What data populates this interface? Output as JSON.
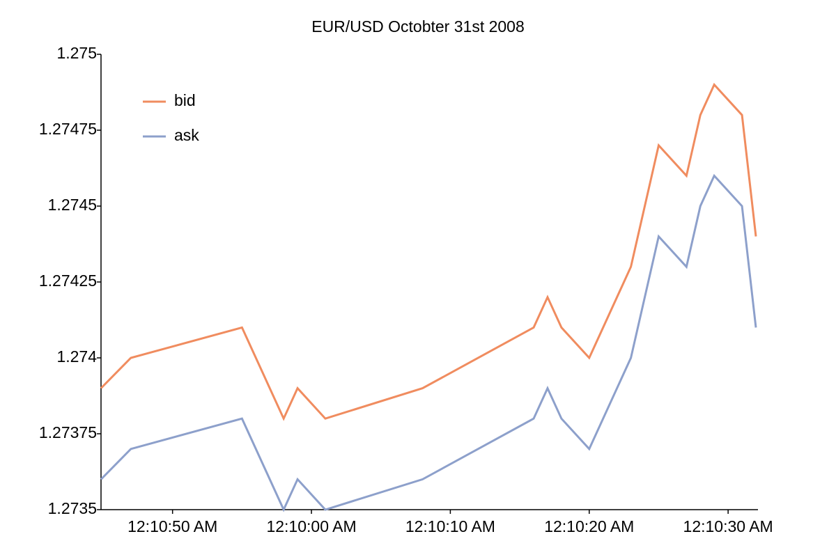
{
  "chart_data": {
    "type": "line",
    "title": "EUR/USD Octobter 31st 2008",
    "x": [
      44.85,
      47,
      55,
      58,
      59,
      61,
      68,
      76,
      77,
      78,
      80,
      83,
      85,
      87,
      88,
      89,
      91,
      92
    ],
    "series": [
      {
        "name": "bid",
        "color": "#f08c5f",
        "values": [
          1.2739,
          1.274,
          1.2741,
          1.2738,
          1.2739,
          1.2738,
          1.2739,
          1.2741,
          1.2742,
          1.2741,
          1.274,
          1.2743,
          1.2747,
          1.2746,
          1.2748,
          1.2749,
          1.2748,
          1.2744
        ]
      },
      {
        "name": "ask",
        "color": "#8da0cb",
        "values": [
          1.2736,
          1.2737,
          1.2738,
          1.2735,
          1.2736,
          1.2735,
          1.2736,
          1.2738,
          1.2739,
          1.2738,
          1.2737,
          1.274,
          1.2744,
          1.2743,
          1.2745,
          1.2746,
          1.2745,
          1.2741
        ]
      }
    ],
    "xlim": [
      44.85,
      92.15
    ],
    "xticks": [
      {
        "value": 50,
        "label": "12:10:50 AM"
      },
      {
        "value": 60,
        "label": "12:10:00 AM"
      },
      {
        "value": 70,
        "label": "12:10:10 AM"
      },
      {
        "value": 80,
        "label": "12:10:20 AM"
      },
      {
        "value": 90,
        "label": "12:10:30 AM"
      }
    ],
    "ylim": [
      1.2735,
      1.275
    ],
    "yticks": [
      1.2735,
      1.27375,
      1.274,
      1.27425,
      1.2745,
      1.27475,
      1.275
    ],
    "grid": false,
    "legend": "upper-left"
  }
}
